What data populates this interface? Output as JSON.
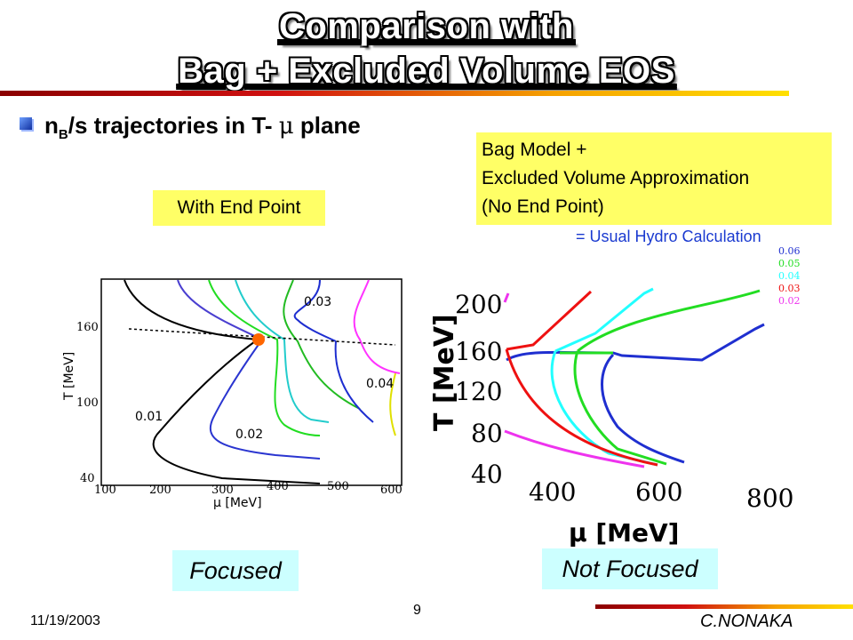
{
  "title": {
    "line1": "Comparison with",
    "line2": "Bag + Excluded Volume EOS"
  },
  "subtitle": {
    "n": "n",
    "sub": "B",
    "rest": "/s trajectories in T-",
    "mu": "μ",
    "plane": " plane"
  },
  "left_box": "With End Point",
  "right_box": {
    "line1": "Bag Model +",
    "line2": "Excluded Volume Approximation",
    "line3": "(No End Point)"
  },
  "usual_hydro": "= Usual Hydro Calculation",
  "left_plot": {
    "ylabel": "T [MeV]",
    "xlabel": "μ [MeV]",
    "yticks": [
      "160",
      "100",
      "40"
    ],
    "xticks": [
      "100",
      "200",
      "300",
      "400",
      "500",
      "600"
    ],
    "labels": {
      "a": "0.03",
      "b": "0.04",
      "c": "0.01",
      "d": "0.02"
    }
  },
  "right_plot": {
    "ylabel": "T [MeV]",
    "xlabel": "μ [MeV]",
    "yticks": [
      "200",
      "160",
      "120",
      "80",
      "40"
    ],
    "xticks": [
      "400",
      "600",
      "800"
    ],
    "legend": [
      "0.06",
      "0.05",
      "0.04",
      "0.03",
      "0.02"
    ],
    "colors": {
      "c006": "#1f2fd0",
      "c005": "#22dd22",
      "c004": "#22ffff",
      "c003": "#ee1111",
      "c002": "#ee33ee"
    }
  },
  "focused": "Focused",
  "not_focused": "Not Focused",
  "footer": {
    "date": "11/19/2003",
    "page": "9",
    "author": "C.NONAKA"
  }
}
